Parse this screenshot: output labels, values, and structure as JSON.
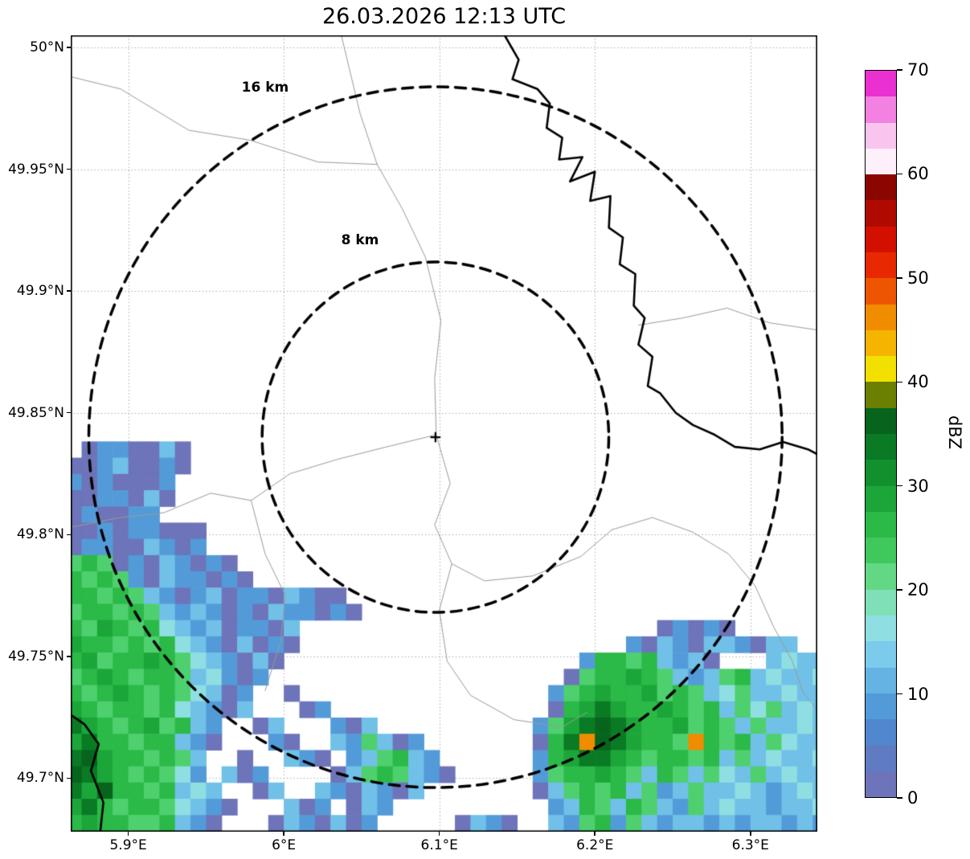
{
  "title": "26.03.2026 12:13 UTC",
  "chart_data": {
    "type": "heatmap",
    "title": "26.03.2026 12:13 UTC",
    "projection": "lon-lat",
    "xlim": [
      5.863,
      6.343
    ],
    "ylim": [
      49.678,
      50.005
    ],
    "x_ticks": [
      {
        "value": 5.9,
        "label": "5.9°E"
      },
      {
        "value": 6.0,
        "label": "6°E"
      },
      {
        "value": 6.1,
        "label": "6.1°E"
      },
      {
        "value": 6.2,
        "label": "6.2°E"
      },
      {
        "value": 6.3,
        "label": "6.3°E"
      }
    ],
    "y_ticks": [
      {
        "value": 50.0,
        "label": "50°N"
      },
      {
        "value": 49.95,
        "label": "49.95°N"
      },
      {
        "value": 49.9,
        "label": "49.9°N"
      },
      {
        "value": 49.85,
        "label": "49.85°N"
      },
      {
        "value": 49.8,
        "label": "49.8°N"
      },
      {
        "value": 49.75,
        "label": "49.75°N"
      },
      {
        "value": 49.7,
        "label": "49.7°N"
      }
    ],
    "grid": {
      "show": true,
      "style": "dotted",
      "color": "#a8a8a8"
    },
    "radar": {
      "center": {
        "lon": 6.0975,
        "lat": 49.84
      },
      "marker": "+",
      "range_rings": [
        {
          "km": 8,
          "label": "8 km",
          "label_lon": 6.049,
          "label_lat": 49.921
        },
        {
          "km": 16,
          "label": "16 km",
          "label_lon": 5.988,
          "label_lat": 49.9835
        }
      ],
      "ring_style": {
        "color": "#000000",
        "dash": [
          13,
          9
        ],
        "width": 3.5
      }
    },
    "colorbar": {
      "label": "dBZ",
      "min": 0,
      "max": 70,
      "step": 2.5,
      "ticks": [
        0,
        10,
        20,
        30,
        40,
        50,
        60,
        70
      ],
      "colors": [
        "#6d74b9",
        "#5f7cc3",
        "#5187ce",
        "#539bd8",
        "#65b3e3",
        "#7ccaec",
        "#8fdfe2",
        "#7fe0b8",
        "#62d884",
        "#3fc95c",
        "#2bb948",
        "#1ca639",
        "#12902e",
        "#0a7a24",
        "#07641c",
        "#6b8000",
        "#f2e000",
        "#f5b400",
        "#f08c00",
        "#ee5500",
        "#e82800",
        "#d31000",
        "#b00a00",
        "#8c0600",
        "#fdf0fa",
        "#f9c4ee",
        "#f281e2",
        "#ea30d0"
      ]
    },
    "echoes": {
      "lon0": 5.86,
      "lat0": 50.005,
      "dlon": 0.01,
      "dlat": 0.00667,
      "palette": {
        "a": "#6d74b9",
        "b": "#539bd8",
        "c": "#70c0e8",
        "d": "#8fdfe2",
        "e": "#7fe0b8",
        "f": "#4ed06e",
        "g": "#2bb948",
        "h": "#1ca639",
        "i": "#0a7a24",
        "j": "#07641c",
        "o": "#f08c00",
        "r": "#e82800"
      },
      "dbz_values": {
        "a": 1,
        "b": 8,
        "c": 12,
        "d": 16,
        "e": 19,
        "f": 22,
        "g": 26,
        "h": 29,
        "i": 31,
        "j": 35,
        "o": 44,
        "r": 48
      },
      "grid_rows": [
        "",
        "",
        "",
        "",
        "",
        "",
        "",
        "",
        "",
        "",
        "",
        "",
        "",
        "",
        "",
        "",
        "",
        "",
        "",
        "",
        "",
        "",
        "",
        "",
        "",
        ".abbaaca",
        "aabcaaba",
        "babaaab",
        "aabbaca",
        "abaabb",
        "aababbaaa",
        "abbaacbab",
        "fgfabacbaba",
        "gfgfbacbbaba",
        "ggfgfcbabcabbacbaa",
        "fggfgfcbcbabacbbaba",
        "gfhgfgdcbcabbac.......................ababa",
        "hggfgfgdcbacaba.....................bacbaccbacc",
        "ghfgghgfdcbaca...................bggfgcbca...cdcc",
        "fghgfggfcdbab...................afgghgfcbcfgcdccd",
        "gfghgfgfdcab..a................bfghgghfgfcdfccdcc",
        "hgfggfgdcbac...ab..............aghihgghgfgcfdfcdc",
        "ihgfghfgcb..ac...bac..........bfhijihgghfgfcfccdc",
        "higgfggcba...ba..cbfcab.......agiojihggfogfgcfdcc",
        "ijhggfgfc..a..cba.bcfgcb......bghiihgfggfgcfcdccd",
        "jihgfgfdb.cab....acfgfcba.....bfgghgfcgfcfdcfcdcc",
        "ihjggfgcdc..ac..cbacbac.......acfgfgcfbcfccdcbcdc",
        "higfggfdcba...cab.acb..........bcgfcgfcbfcdccbccd",
        "ghggffgcba...acbacab.....acba..cbfgbfcbccbcbccbcb"
      ]
    },
    "map_layers": {
      "borders_thin": {
        "color": "#9a9a9a",
        "width": 1,
        "polylines": [
          [
            [
              6.037,
              50.005
            ],
            [
              6.049,
              49.973
            ],
            [
              6.06,
              49.952
            ],
            [
              6.076,
              49.934
            ],
            [
              6.091,
              49.914
            ],
            [
              6.101,
              49.888
            ],
            [
              6.097,
              49.864
            ],
            [
              6.098,
              49.841
            ]
          ],
          [
            [
              5.863,
              49.988
            ],
            [
              5.895,
              49.983
            ],
            [
              5.939,
              49.966
            ],
            [
              5.978,
              49.962
            ],
            [
              6.022,
              49.953
            ],
            [
              6.06,
              49.952
            ]
          ],
          [
            [
              6.098,
              49.841
            ],
            [
              6.066,
              49.836
            ],
            [
              6.035,
              49.831
            ],
            [
              6.004,
              49.825
            ],
            [
              5.979,
              49.814
            ],
            [
              5.953,
              49.817
            ],
            [
              5.923,
              49.809
            ],
            [
              5.895,
              49.807
            ],
            [
              5.863,
              49.803
            ]
          ],
          [
            [
              6.098,
              49.841
            ],
            [
              6.107,
              49.821
            ],
            [
              6.097,
              49.804
            ],
            [
              6.108,
              49.788
            ],
            [
              6.129,
              49.781
            ],
            [
              6.16,
              49.783
            ],
            [
              6.191,
              49.791
            ],
            [
              6.211,
              49.802
            ]
          ],
          [
            [
              6.211,
              49.802
            ],
            [
              6.237,
              49.807
            ],
            [
              6.263,
              49.801
            ],
            [
              6.286,
              49.792
            ],
            [
              6.303,
              49.779
            ],
            [
              6.315,
              49.762
            ],
            [
              6.327,
              49.748
            ],
            [
              6.334,
              49.735
            ],
            [
              6.343,
              49.728
            ]
          ],
          [
            [
              6.108,
              49.788
            ],
            [
              6.1,
              49.769
            ],
            [
              6.105,
              49.748
            ],
            [
              6.12,
              49.734
            ],
            [
              6.148,
              49.724
            ],
            [
              6.179,
              49.721
            ],
            [
              6.195,
              49.727
            ]
          ],
          [
            [
              5.979,
              49.814
            ],
            [
              5.988,
              49.792
            ],
            [
              6.001,
              49.775
            ],
            [
              5.998,
              49.756
            ],
            [
              5.988,
              49.736
            ]
          ],
          [
            [
              6.228,
              49.886
            ],
            [
              6.257,
              49.889
            ],
            [
              6.285,
              49.893
            ],
            [
              6.312,
              49.887
            ],
            [
              6.343,
              49.884
            ]
          ]
        ]
      },
      "rivers_thick": {
        "color": "#000000",
        "width": 2.6,
        "polylines": [
          [
            [
              6.142,
              50.005
            ],
            [
              6.151,
              49.995
            ],
            [
              6.147,
              49.987
            ],
            [
              6.163,
              49.983
            ],
            [
              6.171,
              49.977
            ],
            [
              6.169,
              49.967
            ],
            [
              6.179,
              49.963
            ],
            [
              6.177,
              49.954
            ],
            [
              6.192,
              49.955
            ],
            [
              6.184,
              49.945
            ],
            [
              6.2,
              49.949
            ],
            [
              6.197,
              49.937
            ],
            [
              6.21,
              49.939
            ],
            [
              6.209,
              49.926
            ],
            [
              6.218,
              49.922
            ],
            [
              6.216,
              49.911
            ],
            [
              6.226,
              49.907
            ],
            [
              6.225,
              49.894
            ],
            [
              6.232,
              49.889
            ],
            [
              6.228,
              49.878
            ],
            [
              6.237,
              49.873
            ],
            [
              6.234,
              49.861
            ],
            [
              6.242,
              49.858
            ],
            [
              6.252,
              49.85
            ],
            [
              6.263,
              49.845
            ],
            [
              6.277,
              49.841
            ],
            [
              6.29,
              49.836
            ],
            [
              6.306,
              49.835
            ],
            [
              6.321,
              49.838
            ],
            [
              6.337,
              49.835
            ],
            [
              6.343,
              49.833
            ]
          ],
          [
            [
              5.863,
              49.726
            ],
            [
              5.872,
              49.722
            ],
            [
              5.881,
              49.714
            ],
            [
              5.876,
              49.703
            ],
            [
              5.884,
              49.69
            ],
            [
              5.882,
              49.678
            ]
          ]
        ]
      }
    }
  }
}
